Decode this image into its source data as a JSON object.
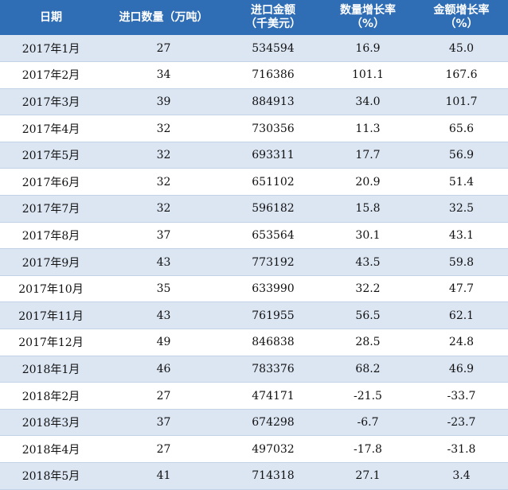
{
  "header": {
    "date": "日期",
    "quantity": "进口数量（万吨）",
    "amount_line1": "进口金额",
    "amount_line2": "（千美元）",
    "qty_growth_line1": "数量增长率",
    "qty_growth_line2": "（%）",
    "amt_growth_line1": "金额增长率",
    "amt_growth_line2": "（%）"
  },
  "rows": [
    {
      "date": "2017年1月",
      "quantity": "27",
      "amount": "534594",
      "qty_growth": "16.9",
      "amt_growth": "45.0"
    },
    {
      "date": "2017年2月",
      "quantity": "34",
      "amount": "716386",
      "qty_growth": "101.1",
      "amt_growth": "167.6"
    },
    {
      "date": "2017年3月",
      "quantity": "39",
      "amount": "884913",
      "qty_growth": "34.0",
      "amt_growth": "101.7"
    },
    {
      "date": "2017年4月",
      "quantity": "32",
      "amount": "730356",
      "qty_growth": "11.3",
      "amt_growth": "65.6"
    },
    {
      "date": "2017年5月",
      "quantity": "32",
      "amount": "693311",
      "qty_growth": "17.7",
      "amt_growth": "56.9"
    },
    {
      "date": "2017年6月",
      "quantity": "32",
      "amount": "651102",
      "qty_growth": "20.9",
      "amt_growth": "51.4"
    },
    {
      "date": "2017年7月",
      "quantity": "32",
      "amount": "596182",
      "qty_growth": "15.8",
      "amt_growth": "32.5"
    },
    {
      "date": "2017年8月",
      "quantity": "37",
      "amount": "653564",
      "qty_growth": "30.1",
      "amt_growth": "43.1"
    },
    {
      "date": "2017年9月",
      "quantity": "43",
      "amount": "773192",
      "qty_growth": "43.5",
      "amt_growth": "59.8"
    },
    {
      "date": "2017年10月",
      "quantity": "35",
      "amount": "633990",
      "qty_growth": "32.2",
      "amt_growth": "47.7"
    },
    {
      "date": "2017年11月",
      "quantity": "43",
      "amount": "761955",
      "qty_growth": "56.5",
      "amt_growth": "62.1"
    },
    {
      "date": "2017年12月",
      "quantity": "49",
      "amount": "846838",
      "qty_growth": "28.5",
      "amt_growth": "24.8"
    },
    {
      "date": "2018年1月",
      "quantity": "46",
      "amount": "783376",
      "qty_growth": "68.2",
      "amt_growth": "46.9"
    },
    {
      "date": "2018年2月",
      "quantity": "27",
      "amount": "474171",
      "qty_growth": "-21.5",
      "amt_growth": "-33.7"
    },
    {
      "date": "2018年3月",
      "quantity": "37",
      "amount": "674298",
      "qty_growth": "-6.7",
      "amt_growth": "-23.7"
    },
    {
      "date": "2018年4月",
      "quantity": "27",
      "amount": "497032",
      "qty_growth": "-17.8",
      "amt_growth": "-31.8"
    },
    {
      "date": "2018年5月",
      "quantity": "41",
      "amount": "714318",
      "qty_growth": "27.1",
      "amt_growth": "3.4"
    }
  ],
  "colors": {
    "header_bg": "#2f6db5",
    "stripe": "#dce6f3"
  }
}
